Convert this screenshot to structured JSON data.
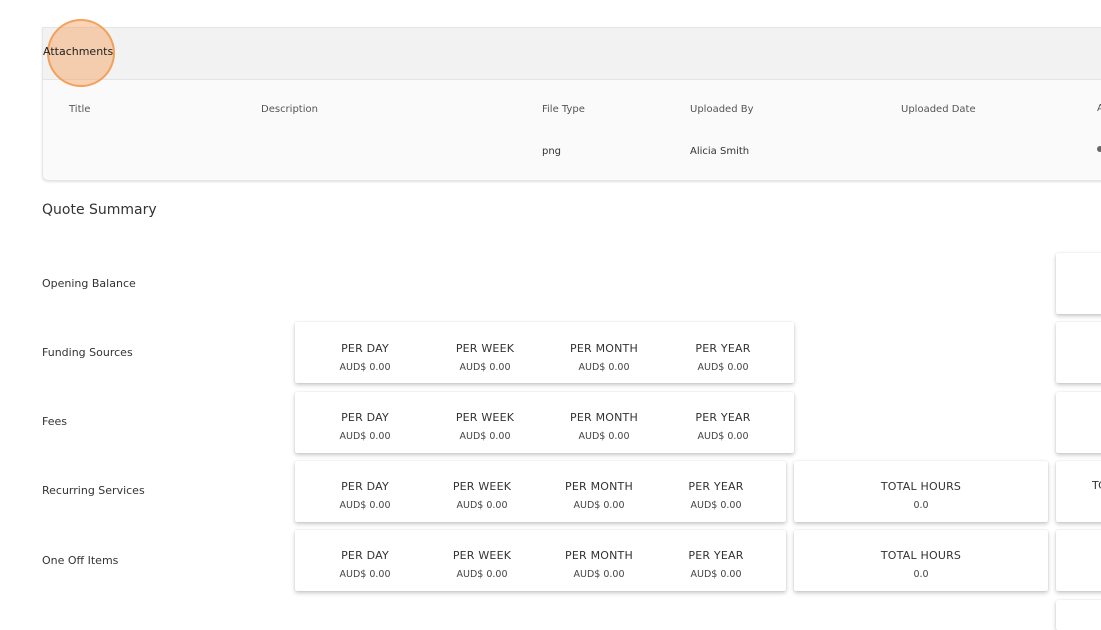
{
  "attachments": {
    "title": "Attachments",
    "columns": [
      "Title",
      "Description",
      "File Type",
      "Uploaded By",
      "Uploaded Date",
      "A"
    ],
    "rows": [
      {
        "title": "",
        "description": "",
        "file_type": "png",
        "uploaded_by": "Alicia Smith",
        "uploaded_date": ""
      }
    ]
  },
  "quote_summary": {
    "title": "Quote Summary",
    "rows": [
      {
        "label": "Opening Balance"
      },
      {
        "label": "Funding Sources",
        "per_day": "AUD$ 0.00",
        "per_week": "AUD$ 0.00",
        "per_month": "AUD$ 0.00",
        "per_year": "AUD$ 0.00"
      },
      {
        "label": "Fees",
        "per_day": "AUD$ 0.00",
        "per_week": "AUD$ 0.00",
        "per_month": "AUD$ 0.00",
        "per_year": "AUD$ 0.00"
      },
      {
        "label": "Recurring Services",
        "per_day": "AUD$ 0.00",
        "per_week": "AUD$ 0.00",
        "per_month": "AUD$ 0.00",
        "per_year": "AUD$ 0.00",
        "total_hours": "0.0",
        "edge": "TC"
      },
      {
        "label": "One Off Items",
        "per_day": "AUD$ 0.00",
        "per_week": "AUD$ 0.00",
        "per_month": "AUD$ 0.00",
        "per_year": "AUD$ 0.00",
        "total_hours": "0.0"
      }
    ],
    "metric_labels": {
      "per_day": "PER DAY",
      "per_week": "PER WEEK",
      "per_month": "PER MONTH",
      "per_year": "PER YEAR",
      "total_hours": "TOTAL HOURS"
    }
  },
  "colors": {
    "click_highlight": "#f4a05a"
  }
}
